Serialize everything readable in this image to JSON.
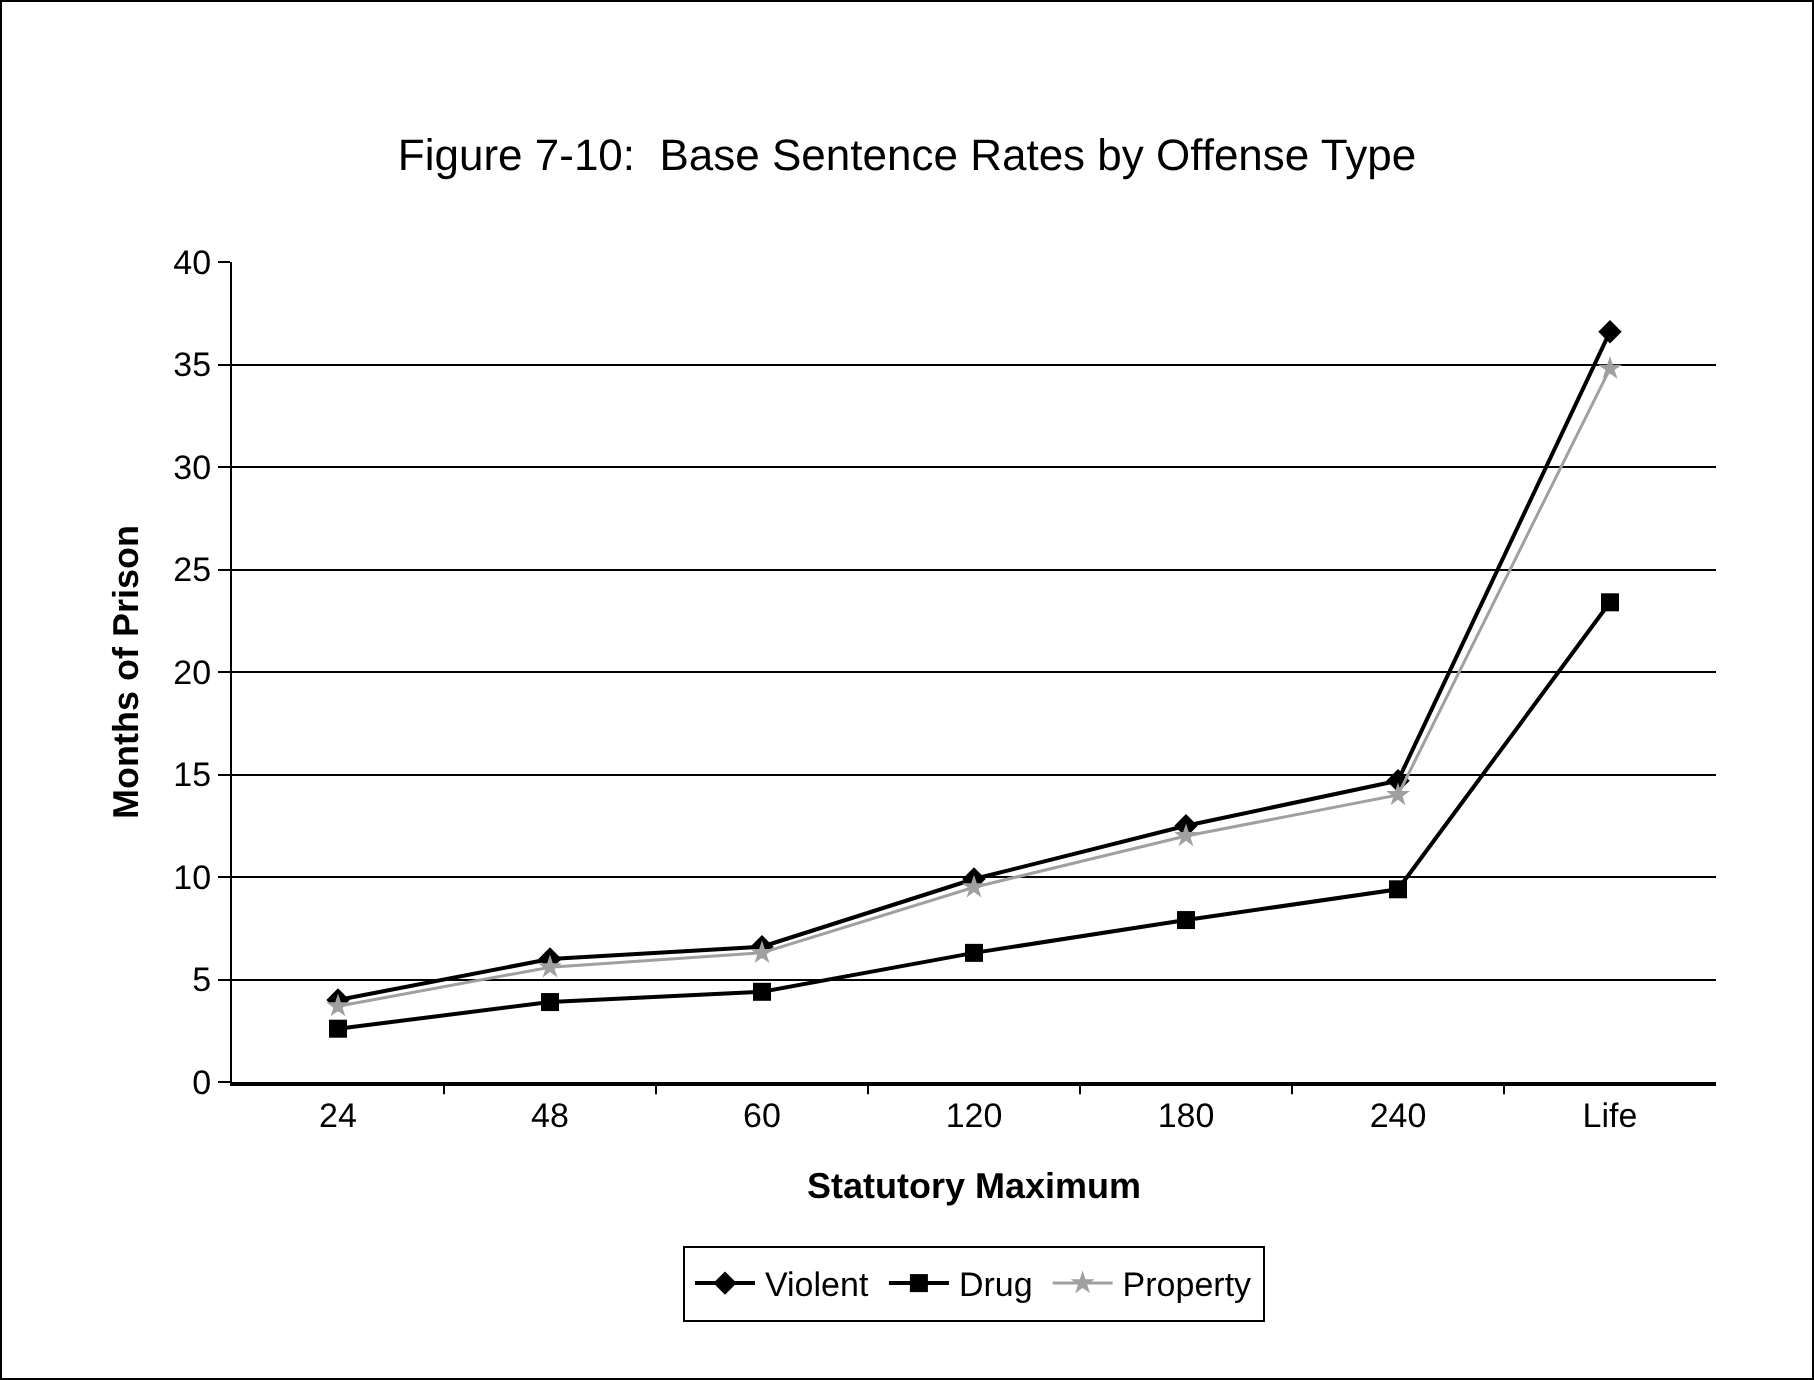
{
  "chart_data": {
    "type": "line",
    "title": "Figure 7-10:  Base Sentence Rates by Offense Type",
    "xlabel": "Statutory Maximum",
    "ylabel": "Months of Prison",
    "categories": [
      "24",
      "48",
      "60",
      "120",
      "180",
      "240",
      "Life"
    ],
    "series": [
      {
        "name": "Violent",
        "color": "#000000",
        "marker": "diamond",
        "values": [
          4.0,
          6.0,
          6.6,
          9.9,
          12.5,
          14.7,
          36.6
        ]
      },
      {
        "name": "Drug",
        "color": "#000000",
        "marker": "square",
        "values": [
          2.6,
          3.9,
          4.4,
          6.3,
          7.9,
          9.4,
          23.4
        ]
      },
      {
        "name": "Property",
        "color": "#a0a0a0",
        "marker": "star",
        "values": [
          3.7,
          5.6,
          6.3,
          9.5,
          12.0,
          14.0,
          34.8
        ]
      }
    ],
    "ylim": [
      0,
      40
    ],
    "yticks": [
      0,
      5,
      10,
      15,
      20,
      25,
      30,
      35,
      40
    ],
    "grid": "y",
    "legend": "bottom",
    "line_style": "solid"
  }
}
